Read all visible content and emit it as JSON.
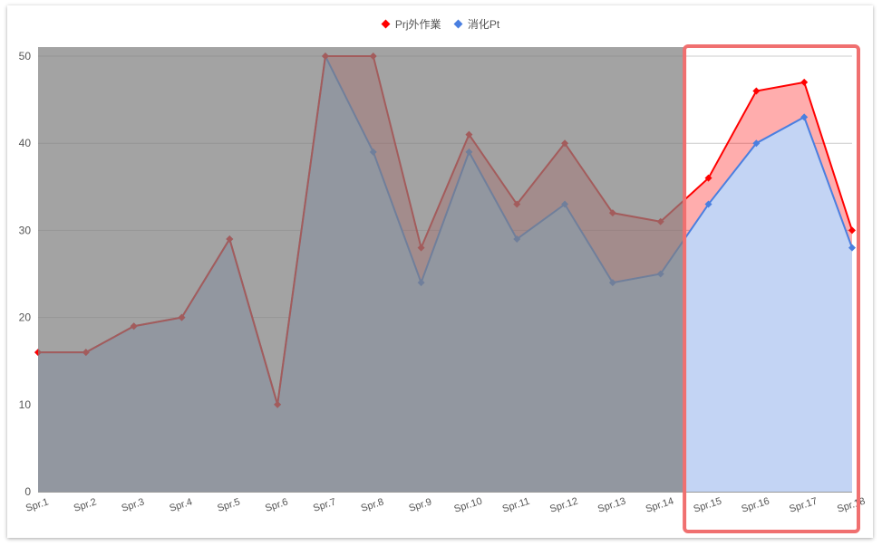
{
  "chart_data": {
    "type": "area",
    "categories": [
      "Spr.1",
      "Spr.2",
      "Spr.3",
      "Spr.4",
      "Spr.5",
      "Spr.6",
      "Spr.7",
      "Spr.8",
      "Spr.9",
      "Spr.10",
      "Spr.11",
      "Spr.12",
      "Spr.13",
      "Spr.14",
      "Spr.15",
      "Spr.16",
      "Spr.17",
      "Spr.18"
    ],
    "series": [
      {
        "name": "Prj外作業",
        "color": "#ff0000",
        "values": [
          16,
          16,
          19,
          20,
          29,
          10,
          50,
          50,
          28,
          41,
          33,
          40,
          32,
          31,
          36,
          46,
          47,
          30
        ]
      },
      {
        "name": "消化Pt",
        "color": "#4a7fe0",
        "values": [
          16,
          16,
          19,
          20,
          29,
          10,
          50,
          39,
          24,
          39,
          29,
          33,
          24,
          25,
          33,
          40,
          43,
          28
        ]
      }
    ],
    "y_ticks": [
      0,
      10,
      20,
      30,
      40,
      50
    ],
    "ylim": [
      0,
      50
    ],
    "grid": true,
    "legend_position": "top",
    "shaded_categories": [
      "Spr.1",
      "Spr.14"
    ],
    "highlight_categories": [
      "Spr.15",
      "Spr.18"
    ],
    "shade_color": "#808080",
    "highlight_color": "#f07070"
  }
}
